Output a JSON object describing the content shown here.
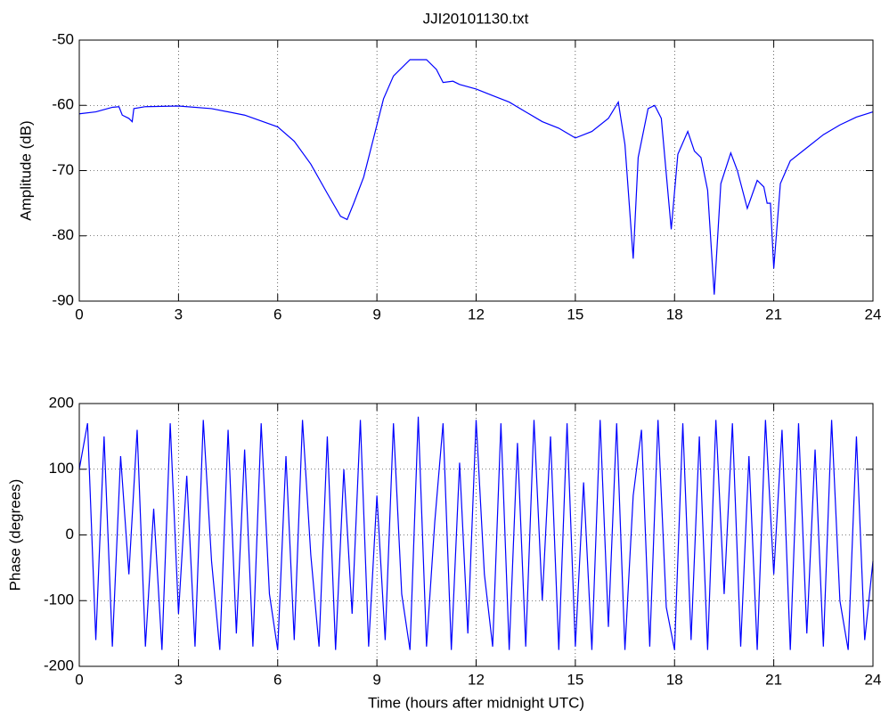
{
  "chart_data": [
    {
      "type": "line",
      "title": "JJI20101130.txt",
      "ylabel": "Amplitude (dB)",
      "x": [
        0,
        0.5,
        1,
        1.2,
        1.3,
        1.5,
        1.6,
        1.65,
        2,
        3,
        4,
        5,
        6,
        6.5,
        7,
        7.5,
        7.9,
        8.1,
        8.3,
        8.6,
        8.9,
        9.2,
        9.5,
        10,
        10.5,
        10.8,
        11,
        11.3,
        11.5,
        12,
        12.5,
        13,
        13.5,
        14,
        14.5,
        15,
        15.5,
        16,
        16.3,
        16.5,
        16.75,
        16.9,
        17.2,
        17.4,
        17.6,
        17.9,
        18.1,
        18.4,
        18.6,
        18.8,
        19,
        19.2,
        19.4,
        19.7,
        19.9,
        20.2,
        20.5,
        20.7,
        20.8,
        20.9,
        21,
        21.2,
        21.5,
        22,
        22.5,
        23,
        23.5,
        24
      ],
      "values": [
        -61.3,
        -61,
        -60.3,
        -60.2,
        -61.5,
        -62,
        -62.5,
        -60.5,
        -60.2,
        -60.1,
        -60.5,
        -61.5,
        -63.3,
        -65.5,
        -69,
        -73.5,
        -77,
        -77.5,
        -75,
        -71,
        -65,
        -59,
        -55.5,
        -53,
        -53,
        -54.5,
        -56.5,
        -56.3,
        -56.8,
        -57.5,
        -58.5,
        -59.5,
        -61,
        -62.5,
        -63.5,
        -65,
        -64,
        -62,
        -59.5,
        -66,
        -83.5,
        -68,
        -60.5,
        -60,
        -62,
        -79,
        -67.5,
        -64,
        -67,
        -68,
        -73,
        -89,
        -72,
        -67.3,
        -70,
        -75.8,
        -71.5,
        -72.5,
        -75,
        -75,
        -85,
        -72,
        -68.5,
        -66.5,
        -64.5,
        -63,
        -61.8,
        -61
      ],
      "color": "#0000ff",
      "xlim": [
        0,
        24
      ],
      "xticks": [
        0,
        3,
        6,
        9,
        12,
        15,
        18,
        21,
        24
      ],
      "ylim": [
        -90,
        -50
      ],
      "yticks": [
        -90,
        -80,
        -70,
        -60,
        -50
      ],
      "grid": true
    },
    {
      "type": "line",
      "ylabel": "Phase (degrees)",
      "xlabel": "Time (hours after midnight UTC)",
      "x": [
        0,
        0.25,
        0.5,
        0.75,
        1,
        1.25,
        1.5,
        1.75,
        2,
        2.25,
        2.5,
        2.75,
        3,
        3.25,
        3.5,
        3.75,
        4,
        4.25,
        4.5,
        4.75,
        5,
        5.25,
        5.5,
        5.75,
        6,
        6.25,
        6.5,
        6.75,
        7,
        7.25,
        7.5,
        7.75,
        8,
        8.25,
        8.5,
        8.75,
        9,
        9.25,
        9.5,
        9.75,
        10,
        10.25,
        10.5,
        10.75,
        11,
        11.25,
        11.5,
        11.75,
        12,
        12.25,
        12.5,
        12.75,
        13,
        13.25,
        13.5,
        13.75,
        14,
        14.25,
        14.5,
        14.75,
        15,
        15.25,
        15.5,
        15.75,
        16,
        16.25,
        16.5,
        16.75,
        17,
        17.25,
        17.5,
        17.75,
        18,
        18.25,
        18.5,
        18.75,
        19,
        19.25,
        19.5,
        19.75,
        20,
        20.25,
        20.5,
        20.75,
        21,
        21.25,
        21.5,
        21.75,
        22,
        22.25,
        22.5,
        22.75,
        23,
        23.25,
        23.5,
        23.75,
        24
      ],
      "values": [
        100,
        170,
        -160,
        150,
        -170,
        120,
        -60,
        160,
        -170,
        40,
        -175,
        170,
        -120,
        90,
        -170,
        175,
        -40,
        -175,
        160,
        -150,
        130,
        -170,
        170,
        -90,
        -175,
        120,
        -160,
        175,
        -30,
        -170,
        150,
        -175,
        100,
        -120,
        175,
        -170,
        60,
        -160,
        170,
        -90,
        -175,
        180,
        -170,
        20,
        170,
        -175,
        110,
        -150,
        175,
        -60,
        -170,
        170,
        -175,
        140,
        -170,
        175,
        -100,
        150,
        -175,
        170,
        -170,
        80,
        -175,
        175,
        -140,
        170,
        -175,
        60,
        160,
        -170,
        175,
        -110,
        -175,
        170,
        -160,
        150,
        -175,
        175,
        -90,
        170,
        -170,
        120,
        -175,
        175,
        -60,
        160,
        -175,
        170,
        -150,
        130,
        -170,
        175,
        -100,
        -175,
        150,
        -160,
        -40
      ],
      "color": "#0000ff",
      "xlim": [
        0,
        24
      ],
      "xticks": [
        0,
        3,
        6,
        9,
        12,
        15,
        18,
        21,
        24
      ],
      "ylim": [
        -200,
        200
      ],
      "yticks": [
        -200,
        -100,
        0,
        100,
        200
      ],
      "grid": true
    }
  ]
}
